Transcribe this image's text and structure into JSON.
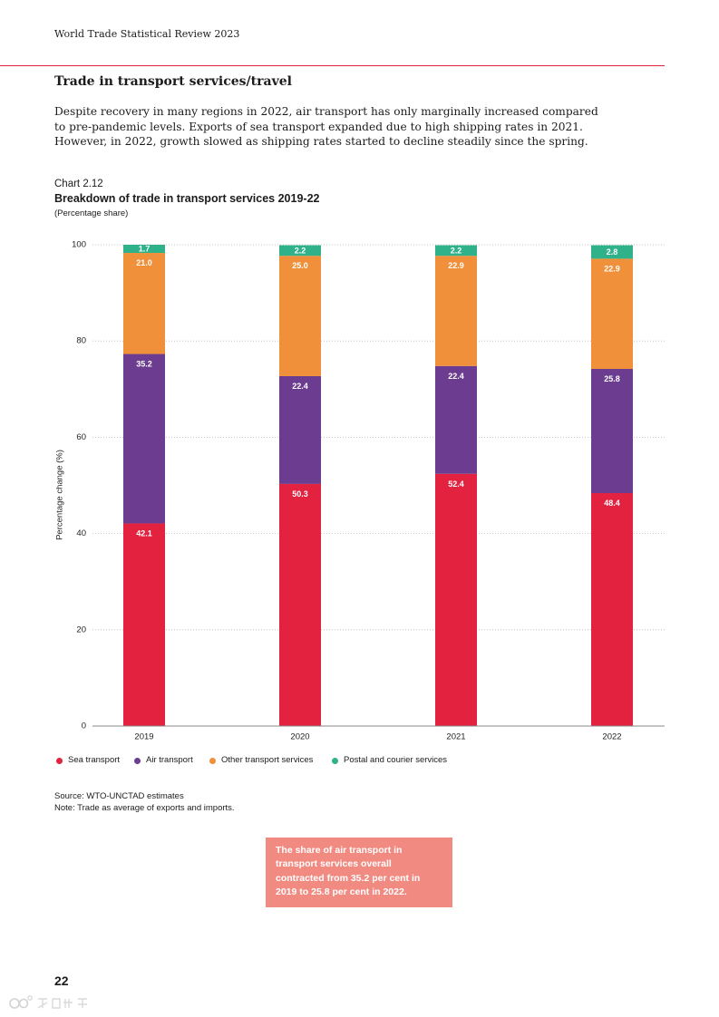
{
  "header": {
    "publication_title": "World Trade Statistical Review 2023"
  },
  "section": {
    "title": "Trade in transport services/travel",
    "intro_lines": [
      "Despite recovery in many regions in 2022, air transport has only marginally increased compared",
      "to pre-pandemic levels. Exports of sea transport expanded due to high shipping rates in 2021.",
      "However, in 2022, growth slowed as shipping rates started to decline steadily since the spring."
    ]
  },
  "chart_data": {
    "type": "bar",
    "stacked": true,
    "label": "Chart 2.12",
    "title": "Breakdown of trade in transport services 2019-22",
    "subtitle": "(Percentage share)",
    "ylabel": "Percentage change (%)",
    "ylim": [
      0,
      100
    ],
    "yticks": [
      0,
      20,
      40,
      60,
      80,
      100
    ],
    "grid": true,
    "legend": "bottom-left",
    "categories": [
      "2019",
      "2020",
      "2021",
      "2022"
    ],
    "series": [
      {
        "name": "Sea transport",
        "color": "#e3223f",
        "values": [
          42.1,
          50.3,
          52.4,
          48.4
        ]
      },
      {
        "name": "Air transport",
        "color": "#6b3c8f",
        "values": [
          35.2,
          22.4,
          22.4,
          25.8
        ]
      },
      {
        "name": "Other transport services",
        "color": "#f0903a",
        "values": [
          21.0,
          25.0,
          22.9,
          22.9
        ]
      },
      {
        "name": "Postal and courier services",
        "color": "#2fb18a",
        "values": [
          1.7,
          2.2,
          2.2,
          2.8
        ]
      }
    ],
    "source": "Source: WTO-UNCTAD estimates",
    "note": "Note: Trade as average of exports and imports."
  },
  "callout": {
    "lines": [
      "The share of air transport in",
      "transport services overall",
      "contracted from 35.2 per cent in",
      "2019 to 25.8 per cent in 2022."
    ],
    "color": "#f18b82"
  },
  "page_number": "22",
  "watermark": {
    "text": "六数跨境"
  },
  "colors": {
    "accent": "#e3223f",
    "text": "#1b1b1b"
  }
}
